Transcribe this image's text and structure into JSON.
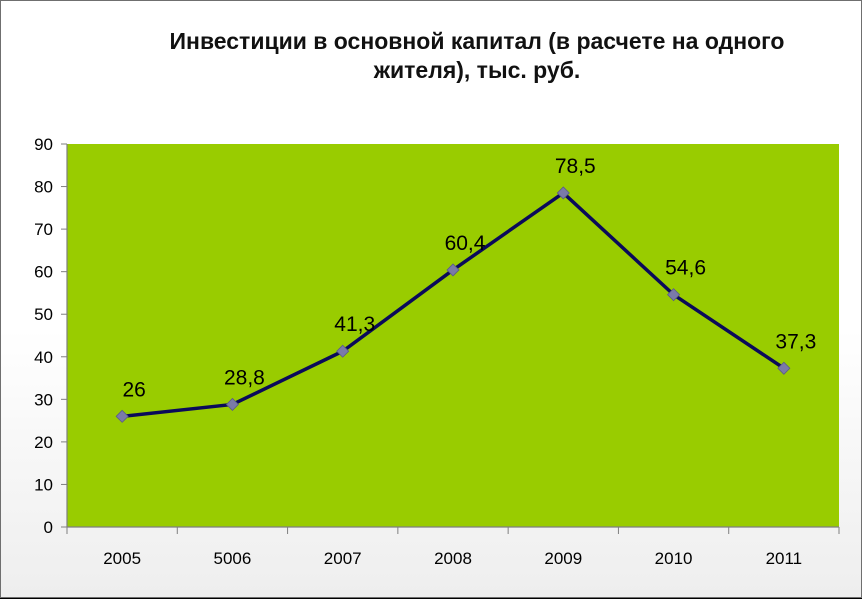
{
  "chart_data": {
    "type": "line",
    "title_lines": [
      "Инвестиции в основной капитал (в расчете на одного",
      "жителя), тыс. руб."
    ],
    "categories": [
      "2005",
      "5006",
      "2007",
      "2008",
      "2009",
      "2010",
      "2011"
    ],
    "series": [
      {
        "values": [
          26,
          28.8,
          41.3,
          60.4,
          78.5,
          54.6,
          37.3
        ],
        "labels": [
          "26",
          "28,8",
          "41,3",
          "60,4",
          "78,5",
          "54,6",
          "37,3"
        ]
      }
    ],
    "ylim": [
      0,
      90
    ],
    "yticks": [
      0,
      10,
      20,
      30,
      40,
      50,
      60,
      70,
      80,
      90
    ],
    "grid": false,
    "legend": "none",
    "colors": {
      "plot_area": "#99cc00",
      "line": "#0a0a5a",
      "marker": "#7a7aa8"
    }
  }
}
